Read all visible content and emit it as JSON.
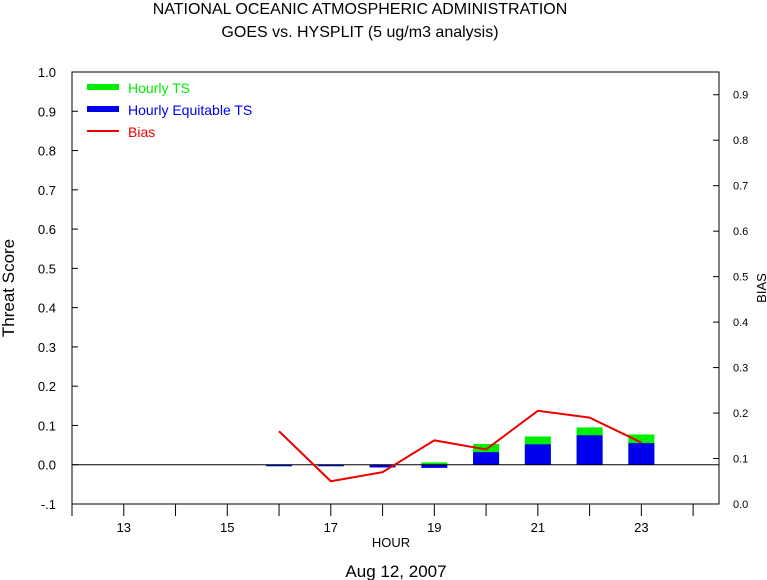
{
  "chart_data": {
    "type": "bar",
    "title": "NATIONAL OCEANIC ATMOSPHERIC ADMINISTRATION",
    "subtitle": "GOES vs. HYSPLIT  (5 ug/m3 analysis)",
    "xlabel": "HOUR",
    "ylabel": "Threat Score",
    "y2label": "BIAS",
    "date_label": "Aug 12, 2007",
    "xlim": [
      12,
      24.5
    ],
    "ylim": [
      -0.1,
      1.0
    ],
    "y2lim": [
      0.0,
      0.95
    ],
    "x_ticks": [
      13,
      15,
      17,
      19,
      21,
      23
    ],
    "y_ticks": [
      "-.1",
      "0.0",
      "0.1",
      "0.2",
      "0.3",
      "0.4",
      "0.5",
      "0.6",
      "0.7",
      "0.8",
      "0.9",
      "1.0"
    ],
    "y2_ticks": [
      "0.0",
      "0.1",
      "0.2",
      "0.3",
      "0.4",
      "0.5",
      "0.6",
      "0.7",
      "0.8",
      "0.9"
    ],
    "legend": {
      "placement": "top-left",
      "entries": [
        {
          "label": "Hourly TS",
          "color": "#00ee00"
        },
        {
          "label": "Hourly Equitable TS",
          "color": "#0000ee"
        },
        {
          "label": "Bias",
          "color": "#ee0000"
        }
      ]
    },
    "series": [
      {
        "name": "Hourly TS",
        "color": "#00ee00",
        "kind": "bar",
        "x": [
          16,
          17,
          18,
          19,
          20,
          21,
          22,
          23
        ],
        "values": [
          -0.002,
          -0.002,
          -0.004,
          0.006,
          0.053,
          0.072,
          0.095,
          0.077
        ]
      },
      {
        "name": "Hourly Equitable TS",
        "color": "#0000ee",
        "kind": "bar",
        "x": [
          16,
          17,
          18,
          19,
          20,
          21,
          22,
          23
        ],
        "values": [
          -0.003,
          -0.003,
          -0.007,
          -0.008,
          0.032,
          0.052,
          0.075,
          0.055
        ]
      },
      {
        "name": "Bias",
        "color": "#ee0000",
        "kind": "line",
        "axis": "right",
        "x": [
          16,
          17,
          18,
          19,
          20,
          21,
          22,
          23
        ],
        "values": [
          0.16,
          0.05,
          0.07,
          0.14,
          0.12,
          0.205,
          0.19,
          0.135
        ]
      }
    ]
  }
}
